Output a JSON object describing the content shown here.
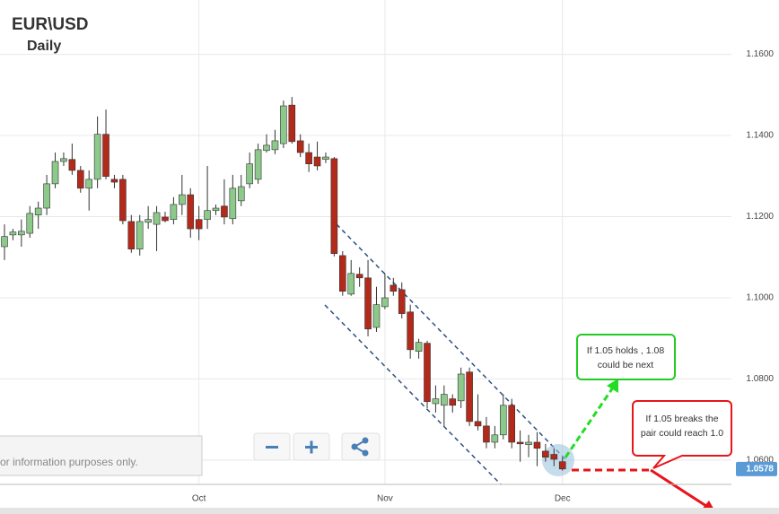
{
  "chart_data": {
    "type": "candlestick",
    "title": "EUR\\USD",
    "subtitle": "Daily",
    "up_color": "#8cc98a",
    "down_color": "#b3291a",
    "grid": true,
    "ylim": [
      1.054,
      1.1734
    ],
    "yticks": [
      {
        "value": 1.06,
        "label": "1.0600"
      },
      {
        "value": 1.08,
        "label": "1.0800"
      },
      {
        "value": 1.1,
        "label": "1.1000"
      },
      {
        "value": 1.12,
        "label": "1.1200"
      },
      {
        "value": 1.14,
        "label": "1.1400"
      },
      {
        "value": 1.16,
        "label": "1.1600"
      }
    ],
    "categories": [
      null,
      null,
      null,
      null,
      null,
      null,
      null,
      null,
      null,
      null,
      null,
      null,
      null,
      null,
      null,
      null,
      null,
      null,
      null,
      null,
      null,
      null,
      null,
      "Oct",
      null,
      null,
      null,
      null,
      null,
      null,
      null,
      null,
      null,
      null,
      null,
      null,
      null,
      null,
      null,
      null,
      null,
      null,
      null,
      null,
      null,
      "Nov",
      null,
      null,
      null,
      null,
      null,
      null,
      null,
      null,
      null,
      null,
      null,
      null,
      null,
      null,
      null,
      null,
      null,
      null,
      null,
      null,
      "Dec"
    ],
    "ohlc": [
      [
        1.1126,
        1.1181,
        1.1093,
        1.1151
      ],
      [
        1.1155,
        1.117,
        1.1142,
        1.1162
      ],
      [
        1.1155,
        1.1193,
        1.1126,
        1.1164
      ],
      [
        1.1159,
        1.1226,
        1.1148,
        1.1208
      ],
      [
        1.1204,
        1.1237,
        1.117,
        1.1221
      ],
      [
        1.1221,
        1.1303,
        1.1204,
        1.1281
      ],
      [
        1.1281,
        1.1358,
        1.127,
        1.1336
      ],
      [
        1.1336,
        1.1358,
        1.1325,
        1.1343
      ],
      [
        1.1341,
        1.138,
        1.1303,
        1.1314
      ],
      [
        1.1314,
        1.1325,
        1.1259,
        1.127
      ],
      [
        1.127,
        1.1314,
        1.1215,
        1.1292
      ],
      [
        1.1292,
        1.1447,
        1.127,
        1.1403
      ],
      [
        1.1403,
        1.1464,
        1.1292,
        1.1299
      ],
      [
        1.1292,
        1.1303,
        1.127,
        1.1285
      ],
      [
        1.1292,
        1.1303,
        1.1181,
        1.119
      ],
      [
        1.1188,
        1.1204,
        1.1111,
        1.112
      ],
      [
        1.112,
        1.1204,
        1.1104,
        1.1188
      ],
      [
        1.1186,
        1.1226,
        1.117,
        1.1193
      ],
      [
        1.1181,
        1.1226,
        1.1115,
        1.121
      ],
      [
        1.1199,
        1.1212,
        1.1186,
        1.119
      ],
      [
        1.1193,
        1.1248,
        1.1181,
        1.123
      ],
      [
        1.123,
        1.1303,
        1.1204,
        1.1254
      ],
      [
        1.1254,
        1.127,
        1.1148,
        1.117
      ],
      [
        1.1193,
        1.1226,
        1.1142,
        1.117
      ],
      [
        1.1193,
        1.1325,
        1.117,
        1.1215
      ],
      [
        1.1215,
        1.123,
        1.1204,
        1.1221
      ],
      [
        1.1226,
        1.1292,
        1.1181,
        1.1199
      ],
      [
        1.1195,
        1.1303,
        1.1181,
        1.127
      ],
      [
        1.1239,
        1.1303,
        1.1226,
        1.1274
      ],
      [
        1.1281,
        1.1358,
        1.127,
        1.133
      ],
      [
        1.1292,
        1.138,
        1.1281,
        1.1365
      ],
      [
        1.1363,
        1.1403,
        1.1358,
        1.1376
      ],
      [
        1.1365,
        1.1414,
        1.1354,
        1.1387
      ],
      [
        1.138,
        1.1486,
        1.1369,
        1.1473
      ],
      [
        1.1475,
        1.1495,
        1.138,
        1.1385
      ],
      [
        1.1387,
        1.1403,
        1.1347,
        1.1358
      ],
      [
        1.1358,
        1.138,
        1.131,
        1.133
      ],
      [
        1.1347,
        1.1385,
        1.1314,
        1.1325
      ],
      [
        1.1341,
        1.1358,
        1.1332,
        1.1347
      ],
      [
        1.1343,
        1.1347,
        1.1102,
        1.1109
      ],
      [
        1.1104,
        1.1115,
        1.1005,
        1.1016
      ],
      [
        1.1009,
        1.1093,
        1.1005,
        1.106
      ],
      [
        1.1058,
        1.1075,
        1.1027,
        1.1049
      ],
      [
        1.1049,
        1.1093,
        1.0905,
        1.0923
      ],
      [
        1.0927,
        1.1027,
        1.0916,
        1.0983
      ],
      [
        1.0978,
        1.106,
        1.0972,
        1.1
      ],
      [
        1.1031,
        1.1049,
        1.1005,
        1.1016
      ],
      [
        1.102,
        1.1038,
        1.0949,
        1.0961
      ],
      [
        1.0965,
        1.0983,
        1.085,
        1.0872
      ],
      [
        1.0868,
        1.0899,
        1.085,
        1.089
      ],
      [
        1.0888,
        1.0894,
        1.0728,
        1.0744
      ],
      [
        1.0739,
        1.0784,
        1.0717,
        1.0751
      ],
      [
        1.0735,
        1.0784,
        1.0684,
        1.0762
      ],
      [
        1.0751,
        1.0762,
        1.0717,
        1.0735
      ],
      [
        1.0746,
        1.0828,
        1.0728,
        1.0812
      ],
      [
        1.0817,
        1.0828,
        1.0684,
        1.0695
      ],
      [
        1.0695,
        1.0762,
        1.0673,
        1.0684
      ],
      [
        1.0684,
        1.0706,
        1.0629,
        1.0644
      ],
      [
        1.0644,
        1.0684,
        1.0629,
        1.0662
      ],
      [
        1.0662,
        1.0762,
        1.0651,
        1.0735
      ],
      [
        1.0735,
        1.0751,
        1.0629,
        1.0644
      ],
      [
        1.0644,
        1.0673,
        1.0596,
        1.064
      ],
      [
        1.0638,
        1.0662,
        1.0607,
        1.0644
      ],
      [
        1.0644,
        1.0669,
        1.0585,
        1.0629
      ],
      [
        1.0622,
        1.064,
        1.0596,
        1.0607
      ],
      [
        1.0614,
        1.0629,
        1.0585,
        1.0602
      ],
      [
        1.0596,
        1.0607,
        1.0574,
        1.0578
      ]
    ],
    "annotations": [
      {
        "lines": [
          "If 1.05 holds , 1.08",
          "could be next"
        ]
      },
      {
        "lines": [
          "If 1.05 breaks the",
          "pair could reach 1.0"
        ]
      }
    ],
    "disclaimer": "or information purposes only."
  }
}
